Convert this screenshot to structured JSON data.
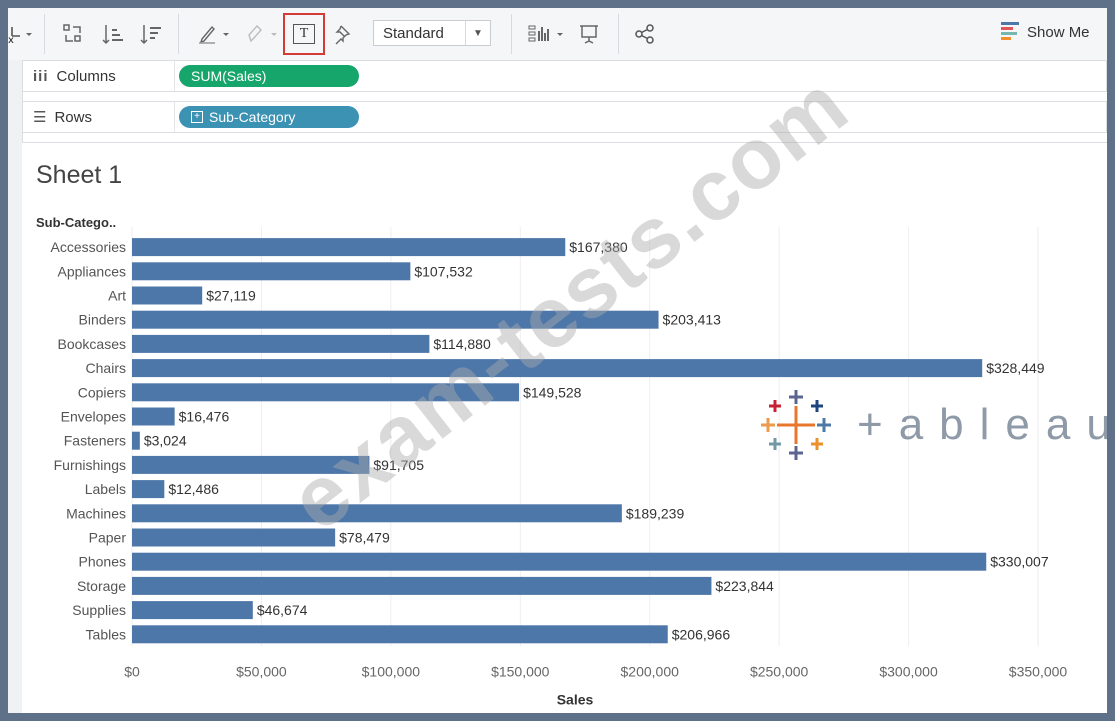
{
  "toolbar": {
    "text_button": "T",
    "mark_select": "Standard",
    "show_me": "Show Me"
  },
  "shelves": {
    "columns_label": "Columns",
    "columns_pill": "SUM(Sales)",
    "rows_label": "Rows",
    "rows_pill": "Sub-Category"
  },
  "sheet": {
    "title": "Sheet 1"
  },
  "watermark": "exam-tests.com",
  "logo": {
    "word": "+ableau"
  },
  "colors": {
    "bar": "#4e77a9",
    "pill_green": "#16a66b",
    "pill_blue": "#3c92b3",
    "highlight": "#d23b36"
  },
  "chart_data": {
    "type": "bar",
    "orientation": "horizontal",
    "ylabel": "Sub-Catego..",
    "xlabel": "Sales",
    "categories": [
      "Accessories",
      "Appliances",
      "Art",
      "Binders",
      "Bookcases",
      "Chairs",
      "Copiers",
      "Envelopes",
      "Fasteners",
      "Furnishings",
      "Labels",
      "Machines",
      "Paper",
      "Phones",
      "Storage",
      "Supplies",
      "Tables"
    ],
    "values": [
      167380,
      107532,
      27119,
      203413,
      114880,
      328449,
      149528,
      16476,
      3024,
      91705,
      12486,
      189239,
      78479,
      330007,
      223844,
      46674,
      206966
    ],
    "value_labels": [
      "$167,380",
      "$107,532",
      "$27,119",
      "$203,413",
      "$114,880",
      "$328,449",
      "$149,528",
      "$16,476",
      "$3,024",
      "$91,705",
      "$12,486",
      "$189,239",
      "$78,479",
      "$330,007",
      "$223,844",
      "$46,674",
      "$206,966"
    ],
    "xlim": [
      0,
      350000
    ],
    "xticks": [
      0,
      50000,
      100000,
      150000,
      200000,
      250000,
      300000,
      350000
    ],
    "xtick_labels": [
      "$0",
      "$50,000",
      "$100,000",
      "$150,000",
      "$200,000",
      "$250,000",
      "$300,000",
      "$350,000"
    ],
    "grid": true
  }
}
